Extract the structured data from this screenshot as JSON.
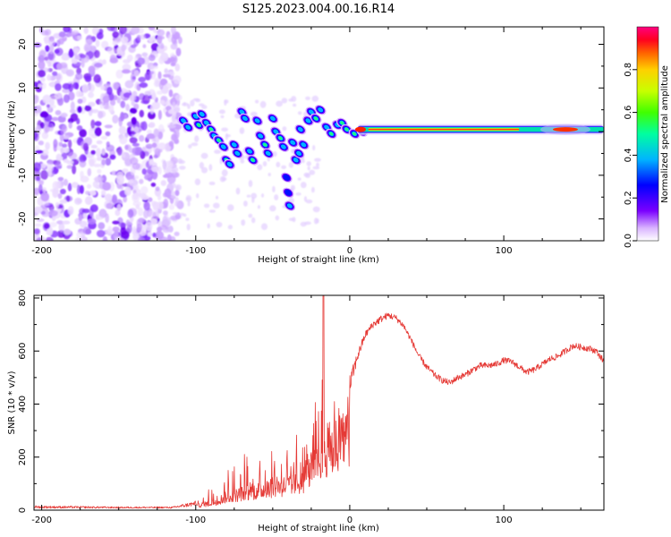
{
  "chart_data": {
    "title": "S125.2023.004.00.16.R14",
    "spectrogram": {
      "type": "heatmap",
      "xlabel": "Height of straight line (km)",
      "ylabel": "Frequency (Hz)",
      "xlim": [
        -205,
        165
      ],
      "ylim": [
        -25,
        24
      ],
      "xticks": [
        "-200",
        "-100",
        "0",
        "100"
      ],
      "xtick_values": [
        -200,
        -100,
        0,
        100
      ],
      "yticks": [
        "-20",
        "-10",
        "0",
        "10",
        "20"
      ],
      "ytick_values": [
        -20,
        -10,
        0,
        10,
        20
      ],
      "noise_region_x": [
        -205,
        -110
      ],
      "blobs": [
        {
          "x": -108,
          "y": 2.5,
          "a": 0.45
        },
        {
          "x": -105,
          "y": 1.0,
          "a": 0.5
        },
        {
          "x": -100,
          "y": 3.5,
          "a": 0.55
        },
        {
          "x": -98,
          "y": 1.5,
          "a": 0.6
        },
        {
          "x": -96,
          "y": 4.0,
          "a": 0.5
        },
        {
          "x": -93,
          "y": 2.0,
          "a": 0.55
        },
        {
          "x": -90,
          "y": 0.5,
          "a": 0.6
        },
        {
          "x": -88,
          "y": -1.0,
          "a": 0.55
        },
        {
          "x": -85,
          "y": -2.0,
          "a": 0.6
        },
        {
          "x": -82,
          "y": -3.5,
          "a": 0.55
        },
        {
          "x": -80,
          "y": -6.5,
          "a": 0.6
        },
        {
          "x": -78,
          "y": -7.5,
          "a": 0.55
        },
        {
          "x": -75,
          "y": -3.0,
          "a": 0.5
        },
        {
          "x": -73,
          "y": -5.0,
          "a": 0.55
        },
        {
          "x": -70,
          "y": 4.5,
          "a": 0.5
        },
        {
          "x": -68,
          "y": 3.0,
          "a": 0.55
        },
        {
          "x": -65,
          "y": -4.5,
          "a": 0.55
        },
        {
          "x": -63,
          "y": -6.5,
          "a": 0.6
        },
        {
          "x": -60,
          "y": 2.5,
          "a": 0.5
        },
        {
          "x": -58,
          "y": -1.0,
          "a": 0.55
        },
        {
          "x": -55,
          "y": -3.0,
          "a": 0.6
        },
        {
          "x": -53,
          "y": -5.0,
          "a": 0.55
        },
        {
          "x": -50,
          "y": 3.0,
          "a": 0.5
        },
        {
          "x": -48,
          "y": 0.0,
          "a": 0.55
        },
        {
          "x": -45,
          "y": -1.5,
          "a": 0.6
        },
        {
          "x": -43,
          "y": -3.5,
          "a": 0.55
        },
        {
          "x": -41,
          "y": -10.5,
          "a": 0.35
        },
        {
          "x": -40,
          "y": -14.0,
          "a": 0.4
        },
        {
          "x": -39,
          "y": -17.0,
          "a": 0.45
        },
        {
          "x": -37,
          "y": -2.5,
          "a": 0.5
        },
        {
          "x": -35,
          "y": -6.5,
          "a": 0.55
        },
        {
          "x": -33,
          "y": -5.0,
          "a": 0.5
        },
        {
          "x": -32,
          "y": 0.5,
          "a": 0.5
        },
        {
          "x": -30,
          "y": -3.0,
          "a": 0.55
        },
        {
          "x": -27,
          "y": 2.5,
          "a": 0.55
        },
        {
          "x": -25,
          "y": 4.5,
          "a": 0.55
        },
        {
          "x": -22,
          "y": 3.0,
          "a": 0.6
        },
        {
          "x": -19,
          "y": 5.0,
          "a": 0.55
        },
        {
          "x": -15,
          "y": 1.0,
          "a": 0.55
        },
        {
          "x": -12,
          "y": -0.5,
          "a": 0.6
        },
        {
          "x": -8,
          "y": 1.5,
          "a": 0.55
        },
        {
          "x": -5,
          "y": 2.0,
          "a": 0.6
        },
        {
          "x": -2,
          "y": 0.5,
          "a": 0.6
        },
        {
          "x": 3,
          "y": -0.5,
          "a": 0.65
        },
        {
          "x": 8,
          "y": 0.0,
          "a": 0.75
        }
      ],
      "ridge": {
        "x_start": 5,
        "x_end": 165,
        "y": 0.5,
        "core_x": [
          12,
          110
        ],
        "tail_blob_x": 140
      },
      "colorbar": {
        "label": "Normalized spectral amplitude",
        "ticks": [
          "0.0",
          "0.2",
          "0.4",
          "0.6",
          "0.8"
        ],
        "tick_values": [
          0.0,
          0.2,
          0.4,
          0.6,
          0.8
        ],
        "range": [
          0,
          1
        ]
      }
    },
    "snr": {
      "type": "line",
      "xlabel": "Height of straight line (km)",
      "ylabel": "SNR (10 * v/v)",
      "xlim": [
        -205,
        165
      ],
      "ylim": [
        0,
        810
      ],
      "xticks": [
        "-200",
        "-100",
        "0",
        "100"
      ],
      "xtick_values": [
        -200,
        -100,
        0,
        100
      ],
      "yticks": [
        "0",
        "200",
        "400",
        "600",
        "800"
      ],
      "ytick_values": [
        0,
        200,
        400,
        600,
        800
      ],
      "color": "#e53935",
      "envelope_x": [
        -205,
        -150,
        -115,
        -100,
        -90,
        -80,
        -70,
        -60,
        -50,
        -40,
        -30,
        -22,
        -18,
        -12,
        -8,
        -4,
        0,
        5,
        10,
        15,
        20,
        25,
        30,
        35,
        40,
        45,
        50,
        55,
        60,
        65,
        70,
        75,
        80,
        85,
        90,
        95,
        100,
        105,
        110,
        115,
        120,
        125,
        130,
        135,
        140,
        145,
        150,
        155,
        160,
        165
      ],
      "envelope_y": [
        12,
        10,
        10,
        25,
        40,
        75,
        95,
        110,
        130,
        140,
        170,
        250,
        330,
        360,
        380,
        400,
        470,
        580,
        660,
        700,
        720,
        735,
        725,
        695,
        640,
        580,
        540,
        510,
        490,
        480,
        500,
        510,
        530,
        545,
        545,
        550,
        565,
        560,
        540,
        520,
        530,
        550,
        570,
        580,
        600,
        620,
        615,
        610,
        600,
        560
      ],
      "jitter": [
        5,
        3,
        3,
        10,
        40,
        60,
        75,
        90,
        100,
        110,
        130,
        150,
        140,
        80,
        70,
        60,
        40,
        20,
        14,
        14,
        14,
        12,
        12,
        12,
        12,
        12,
        12,
        12,
        12,
        12,
        12,
        12,
        12,
        12,
        12,
        12,
        12,
        12,
        12,
        12,
        12,
        12,
        12,
        12,
        12,
        12,
        12,
        12,
        12,
        12
      ],
      "spike": {
        "x": -17,
        "y": 810
      }
    }
  }
}
